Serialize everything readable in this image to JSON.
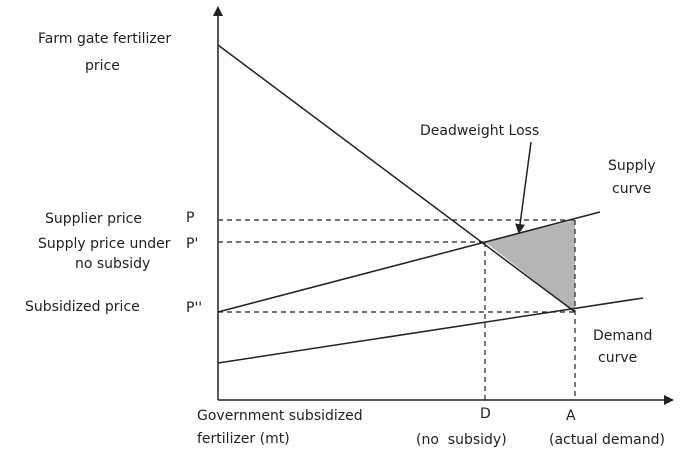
{
  "y_axis": {
    "label": [
      "Farm gate fertilizer",
      "price"
    ]
  },
  "x_axis": {
    "label": [
      "Government subsidized",
      "fertilizer (mt)"
    ]
  },
  "price_levels": [
    {
      "name": [
        "Supplier price"
      ],
      "symbol": "P"
    },
    {
      "name": [
        "Supply price under",
        "no subsidy"
      ],
      "symbol": "P'"
    },
    {
      "name": [
        "Subsidized price"
      ],
      "symbol": "P''"
    }
  ],
  "quantities": [
    {
      "symbol": "D",
      "note": "(no  subsidy)"
    },
    {
      "symbol": "A",
      "note": "(actual demand)"
    }
  ],
  "curves": {
    "supply": [
      "Supply",
      "curve"
    ],
    "demand": [
      "Demand",
      "curve"
    ]
  },
  "annotation": "Deadweight Loss"
}
